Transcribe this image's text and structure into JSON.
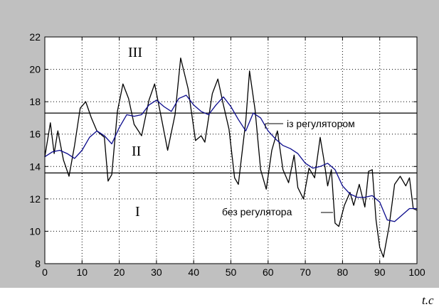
{
  "chart_data": {
    "type": "line",
    "xlim": [
      0,
      100
    ],
    "ylim": [
      8,
      22
    ],
    "x_ticks": [
      0,
      10,
      20,
      30,
      40,
      50,
      60,
      70,
      80,
      90,
      100
    ],
    "y_ticks": [
      8,
      10,
      12,
      14,
      16,
      18,
      20,
      22
    ],
    "grid": true,
    "xlabel": "t.c",
    "ylabel": "",
    "zone_lines": [
      17.3,
      13.6
    ],
    "zone_labels": [
      "III",
      "II",
      "I"
    ],
    "series": [
      {
        "name": "без регулятора",
        "color": "#000000",
        "x": [
          0,
          1.5,
          2.5,
          3.5,
          5,
          6.5,
          8,
          9.5,
          11,
          12.5,
          14,
          16,
          17,
          18,
          19.5,
          21,
          22.5,
          24,
          26,
          28,
          29.5,
          31.5,
          33,
          35,
          36.5,
          38.5,
          40.5,
          42,
          43,
          45,
          46.5,
          48,
          49.5,
          51,
          52,
          54,
          55,
          56.5,
          58,
          59.5,
          61,
          62.5,
          64,
          65.5,
          67,
          68,
          69.5,
          71,
          72.5,
          74,
          75,
          76,
          77,
          78,
          79,
          80.5,
          82,
          83,
          84.5,
          86,
          87,
          88,
          89,
          90,
          91,
          92.5,
          94,
          95.5,
          97,
          98,
          99,
          100
        ],
        "y": [
          14.6,
          16.7,
          14.8,
          16.2,
          14.4,
          13.4,
          15.3,
          17.6,
          18,
          17,
          16.2,
          15.8,
          13.1,
          13.5,
          17.4,
          19.1,
          18.2,
          16.6,
          15.9,
          18.1,
          19.1,
          16.8,
          15,
          17.2,
          20.7,
          18.8,
          15.6,
          15.9,
          15.5,
          18.5,
          19.4,
          17.8,
          16.3,
          13.3,
          12.9,
          16.8,
          19.9,
          17.5,
          13.8,
          12.6,
          15,
          16.2,
          13.8,
          13,
          14.7,
          12.7,
          12,
          13.9,
          13.3,
          15.8,
          14.4,
          12.8,
          13.8,
          10.5,
          10.3,
          11.6,
          12.4,
          11.6,
          12.9,
          11.5,
          13.7,
          13.8,
          10.7,
          9,
          8.4,
          10.3,
          12.9,
          13.4,
          12.8,
          13.3,
          11.4,
          11.3
        ]
      },
      {
        "name": "із регулятором",
        "color": "#0b0b8c",
        "x": [
          0,
          2,
          4,
          6,
          8,
          10,
          12,
          14,
          16,
          18,
          20,
          22,
          24,
          26,
          28,
          30,
          32,
          34,
          36,
          38,
          40,
          42,
          44,
          46,
          48,
          50,
          52,
          54,
          56,
          58,
          60,
          62,
          64,
          66,
          68,
          70,
          72,
          74,
          76,
          78,
          80,
          82,
          84,
          86,
          88,
          90,
          92,
          94,
          96,
          98,
          100
        ],
        "y": [
          14.6,
          14.9,
          15,
          14.8,
          14.5,
          15,
          15.8,
          16.2,
          15.9,
          15.4,
          16.4,
          17.2,
          17.1,
          17.2,
          17.8,
          18.1,
          17.7,
          17.4,
          18.2,
          18.4,
          17.8,
          17.4,
          17.2,
          17.8,
          18.3,
          17.7,
          16.9,
          16.2,
          17.3,
          17,
          16.2,
          15.7,
          15.3,
          15.1,
          14.8,
          14.2,
          13.9,
          14,
          14.2,
          13.8,
          12.8,
          12.3,
          12.1,
          12.1,
          12.2,
          11.8,
          10.7,
          10.6,
          11,
          11.4,
          11.4
        ]
      }
    ]
  }
}
